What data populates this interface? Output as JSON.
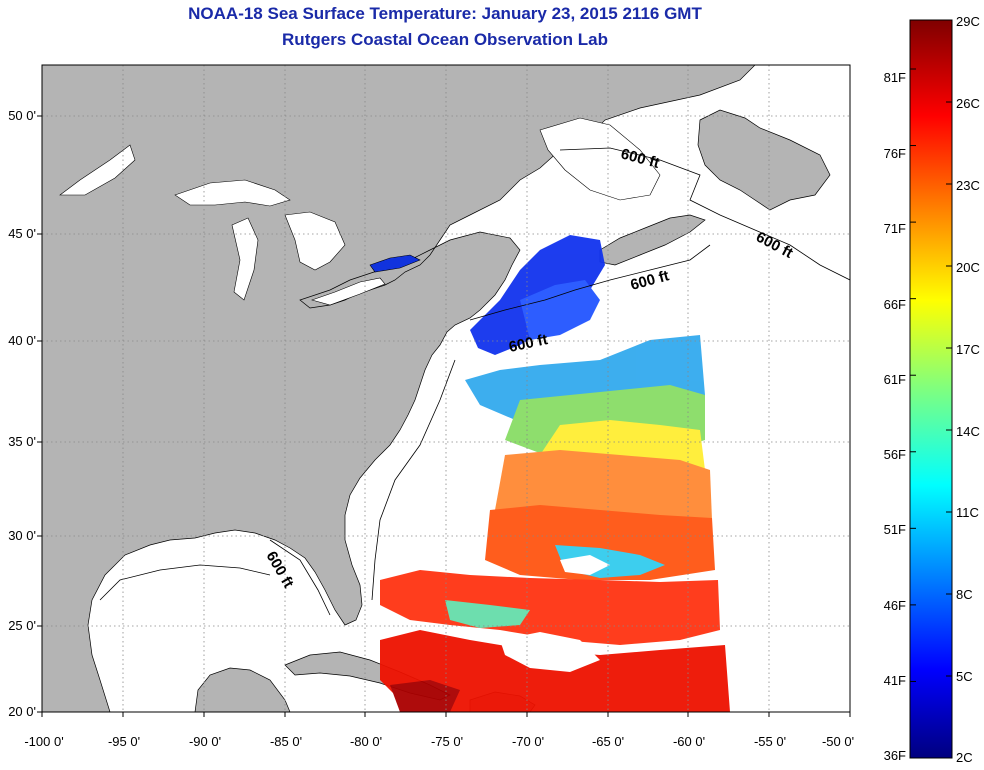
{
  "title": "NOAA-18 Sea Surface Temperature:  January 23, 2015 2116 GMT",
  "subtitle": "Rutgers Coastal Ocean Observation Lab",
  "map": {
    "lon_range": [
      -100,
      -50
    ],
    "lat_range": [
      20,
      52
    ],
    "x_ticks": [
      "-100 0'",
      "-95 0'",
      "-90 0'",
      "-85 0'",
      "-80 0'",
      "-75 0'",
      "-70 0'",
      "-65 0'",
      "-60 0'",
      "-55 0'",
      "-50 0'"
    ],
    "y_ticks": [
      "20 0'",
      "25 0'",
      "30 0'",
      "35 0'",
      "40 0'",
      "45 0'",
      "50 0'"
    ],
    "contour_labels": [
      "600 ft",
      "600 ft",
      "600 ft",
      "600 ft",
      "600 ft"
    ],
    "colors": {
      "land": "#b4b4b4",
      "ocean_no_data": "#ffffff",
      "grid": "#888888",
      "title": "#1a2aa8"
    }
  },
  "colorbar": {
    "celsius": [
      "29C",
      "26C",
      "23C",
      "20C",
      "17C",
      "14C",
      "11C",
      "8C",
      "5C",
      "2C"
    ],
    "fahrenheit": [
      "81F",
      "76F",
      "71F",
      "66F",
      "61F",
      "56F",
      "51F",
      "46F",
      "41F",
      "36F"
    ],
    "min_c": 2,
    "max_c": 29,
    "min_f": 36,
    "max_f": 84.2
  }
}
